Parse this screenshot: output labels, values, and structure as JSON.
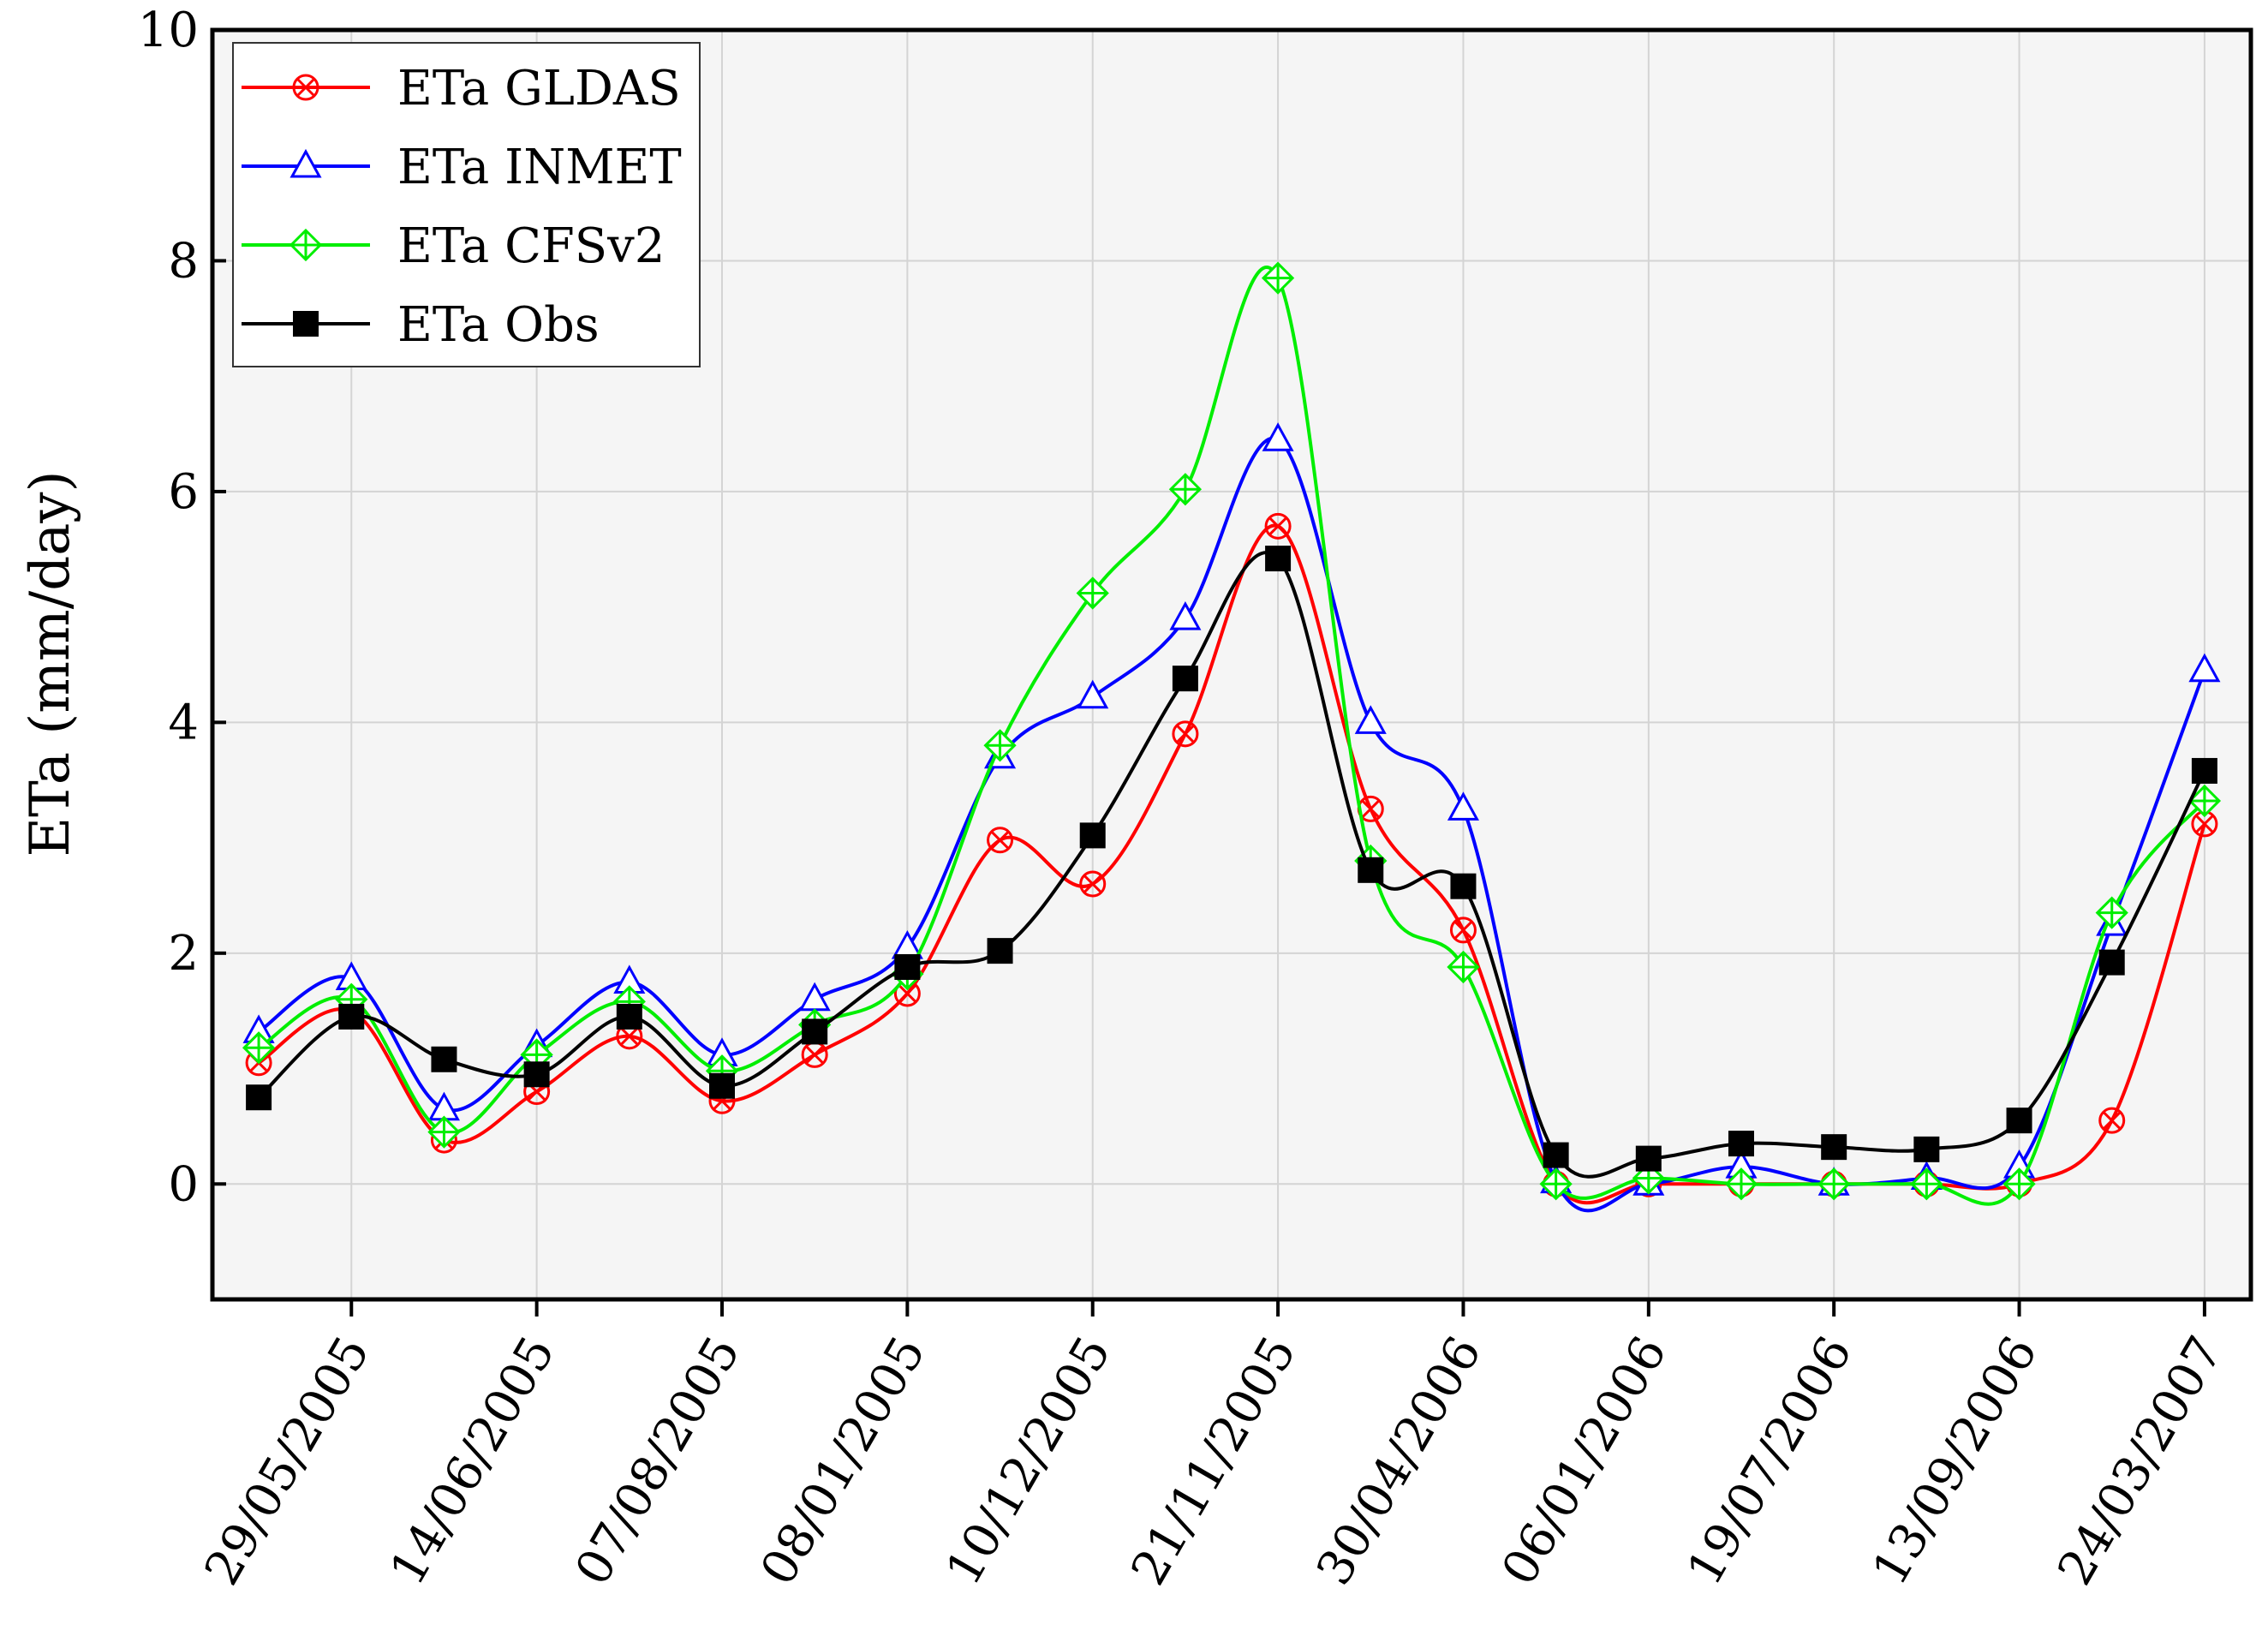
{
  "chart_data": {
    "type": "line",
    "title": "",
    "xlabel": "",
    "ylabel": "ETa (mm/day)",
    "ylim": [
      -1,
      10
    ],
    "yticks": [
      0,
      2,
      4,
      6,
      8,
      10
    ],
    "grid": true,
    "legend_position": "top-left",
    "x": [
      1,
      2,
      3,
      4,
      5,
      6,
      7,
      8,
      9,
      10,
      11,
      12,
      13,
      14,
      15,
      16,
      17,
      18,
      19,
      20,
      21,
      22
    ],
    "xlim": [
      0.5,
      22.5
    ],
    "xtick_positions": [
      2,
      4,
      6,
      8,
      10,
      12,
      14,
      16,
      18,
      20,
      22
    ],
    "xtick_labels": [
      "29/05/2005",
      "14/06/2005",
      "07/08/2005",
      "08/01/2005",
      "10/12/2005",
      "21/11/2005",
      "30/04/2006",
      "06/01/2006",
      "19/07/2006",
      "13/09/2006",
      "24/03/2007"
    ],
    "series": [
      {
        "name": "ETa GLDAS",
        "color": "#ff0000",
        "marker": "circle-x",
        "values": [
          1.05,
          1.5,
          0.38,
          0.8,
          1.28,
          0.72,
          1.12,
          1.65,
          2.98,
          2.6,
          3.9,
          5.7,
          3.25,
          2.2,
          0.0,
          0.0,
          0.0,
          0.0,
          0.0,
          0.0,
          0.55,
          3.12
        ]
      },
      {
        "name": "ETa INMET",
        "color": "#0000ff",
        "marker": "triangle",
        "values": [
          1.32,
          1.78,
          0.65,
          1.2,
          1.75,
          1.12,
          1.6,
          2.05,
          3.7,
          4.22,
          4.9,
          6.45,
          4.0,
          3.25,
          0.02,
          0.0,
          0.15,
          0.0,
          0.05,
          0.15,
          2.25,
          4.45
        ]
      },
      {
        "name": "ETa CFSv2",
        "color": "#00ee00",
        "marker": "diamond-plus",
        "values": [
          1.18,
          1.6,
          0.45,
          1.12,
          1.58,
          0.98,
          1.38,
          1.82,
          3.8,
          5.12,
          6.02,
          7.85,
          2.8,
          1.88,
          0.0,
          0.05,
          0.0,
          0.0,
          0.0,
          0.0,
          2.35,
          3.32
        ]
      },
      {
        "name": "ETa Obs",
        "color": "#000000",
        "marker": "square",
        "values": [
          0.75,
          1.45,
          1.08,
          0.95,
          1.45,
          0.85,
          1.32,
          1.88,
          2.02,
          3.02,
          4.38,
          5.42,
          2.72,
          2.58,
          0.25,
          0.22,
          0.35,
          0.32,
          0.3,
          0.55,
          1.92,
          3.58
        ]
      }
    ]
  }
}
